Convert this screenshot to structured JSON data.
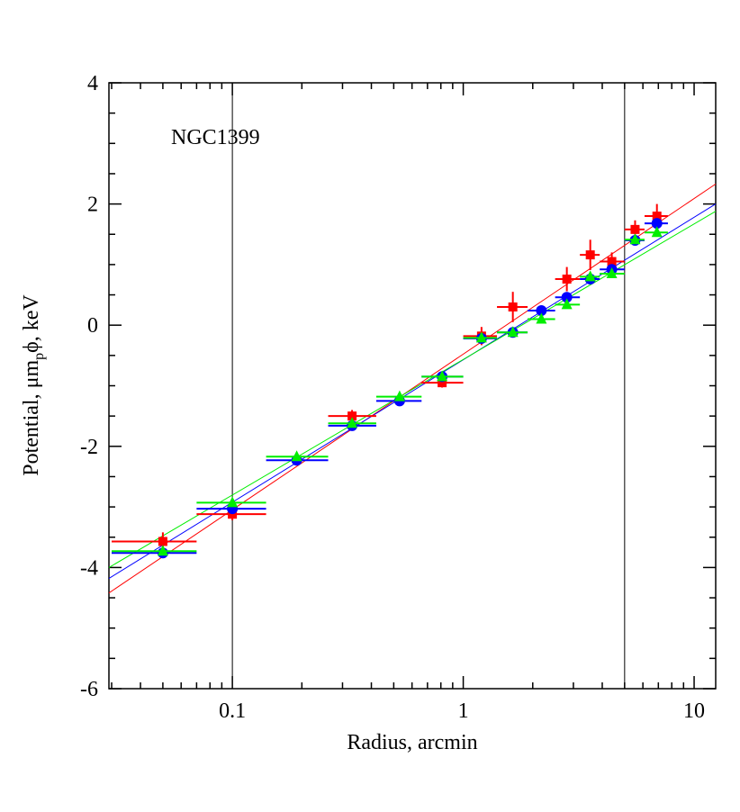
{
  "chart_data": {
    "type": "scatter",
    "annotation": "NGC1399",
    "xlabel": "Radius, arcmin",
    "ylabel": {
      "before": "Potential, μm",
      "sub": "p",
      "after": "ϕ, keV"
    },
    "log_x": true,
    "xlim": [
      0.0292,
      12.4
    ],
    "xticks": [
      0.1,
      1,
      10
    ],
    "xminor": [
      0.03,
      0.04,
      0.05,
      0.06,
      0.07,
      0.08,
      0.09,
      0.2,
      0.3,
      0.4,
      0.5,
      0.6,
      0.7,
      0.8,
      0.9,
      2,
      3,
      4,
      5,
      6,
      7,
      8,
      9
    ],
    "ylim": [
      -6,
      4
    ],
    "yticks": [
      -6,
      -4,
      -2,
      0,
      2,
      4
    ],
    "yminor": [
      -5.5,
      -5,
      -4.5,
      -3.5,
      -3,
      -2.5,
      -1.5,
      -1,
      -0.5,
      0.5,
      1,
      1.5,
      2.5,
      3,
      3.5
    ],
    "vlines": [
      0.1,
      5
    ],
    "x": [
      0.05,
      0.1,
      0.19,
      0.33,
      0.53,
      0.81,
      1.2,
      1.64,
      2.18,
      2.81,
      3.55,
      4.4,
      5.55,
      6.9
    ],
    "bin_edges": [
      0.03,
      0.07,
      0.14,
      0.26,
      0.42,
      0.66,
      1.0,
      1.4,
      1.9,
      2.5,
      3.2,
      3.9,
      5.0,
      6.1,
      7.7
    ],
    "series": [
      {
        "color": "#ff0000",
        "marker": "square",
        "values": [
          -3.57,
          -3.12,
          null,
          -1.5,
          null,
          -0.95,
          -0.18,
          0.3,
          null,
          0.76,
          1.16,
          1.05,
          1.58,
          1.8
        ],
        "yerr": [
          0.15,
          0.1,
          null,
          0.1,
          null,
          0.08,
          0.15,
          0.25,
          null,
          0.2,
          0.25,
          0.15,
          0.15,
          0.2
        ],
        "fit": [
          -4.42,
          2.33
        ]
      },
      {
        "color": "#0000ff",
        "marker": "circle",
        "values": [
          -3.76,
          -3.03,
          -2.23,
          -1.66,
          -1.25,
          -0.85,
          -0.22,
          -0.12,
          0.24,
          0.46,
          0.76,
          0.92,
          1.4,
          1.68
        ],
        "fit": [
          -4.18,
          2.0
        ]
      },
      {
        "color": "#00ee00",
        "marker": "triangle",
        "values": [
          -3.73,
          -2.93,
          -2.17,
          -1.62,
          -1.18,
          -0.85,
          -0.21,
          -0.12,
          0.1,
          0.34,
          0.8,
          0.85,
          1.41,
          1.53
        ],
        "fit": [
          -4.0,
          1.88
        ]
      }
    ]
  }
}
